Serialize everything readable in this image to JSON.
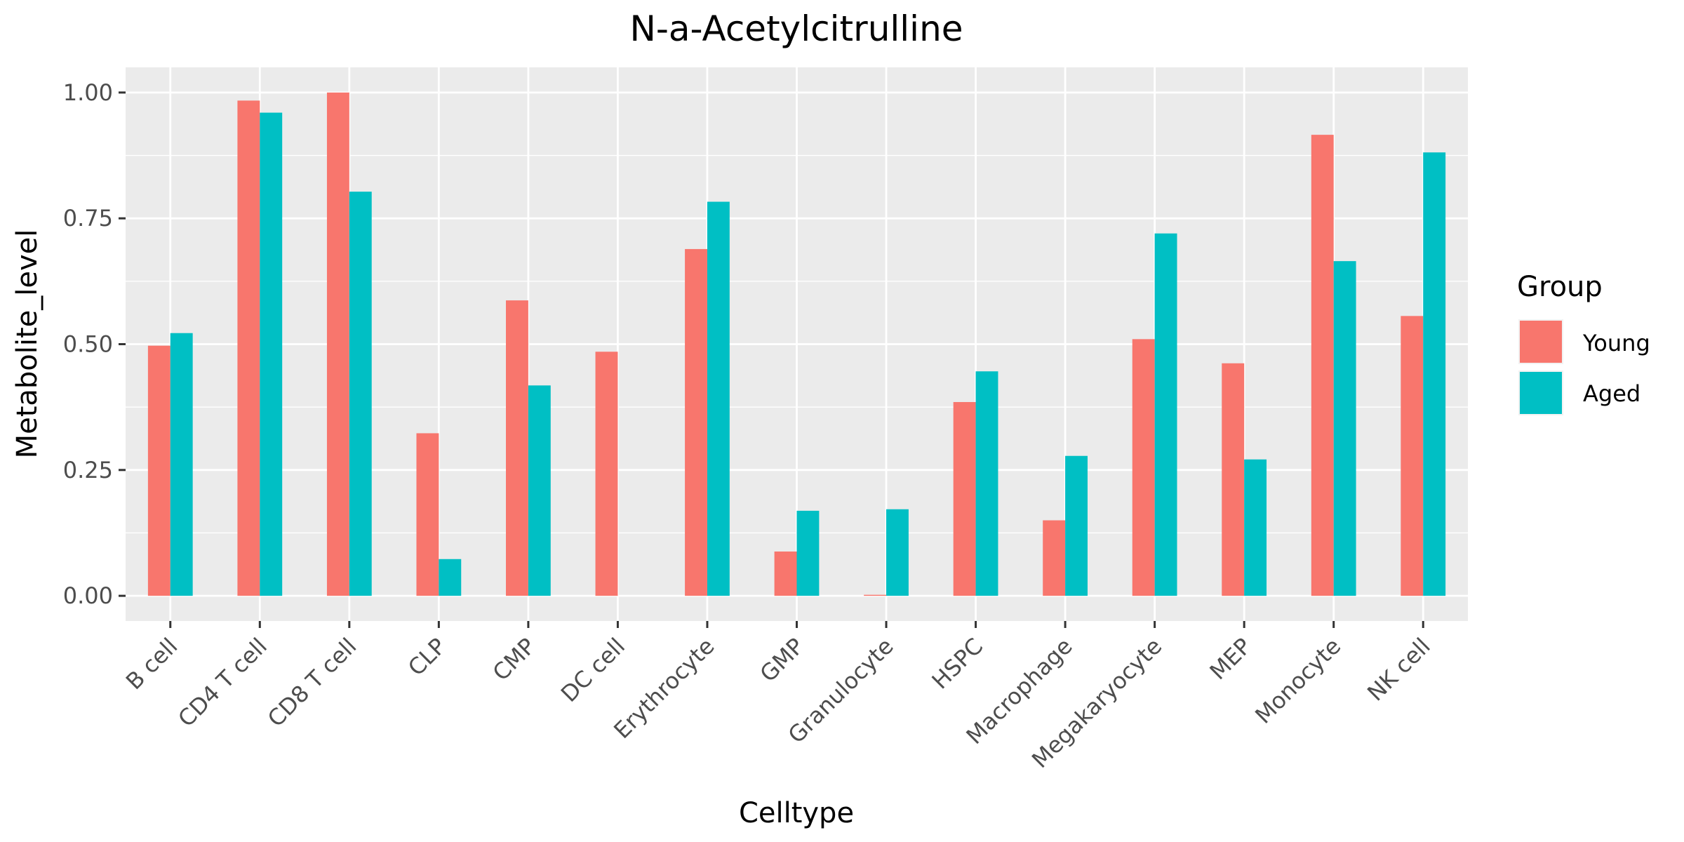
{
  "chart_data": {
    "type": "bar",
    "title": "N-a-Acetylcitrulline",
    "xlabel": "Celltype",
    "ylabel": "Metabolite_level",
    "ylim": [
      -0.05,
      1.05
    ],
    "yticks": [
      0.0,
      0.25,
      0.5,
      0.75,
      1.0
    ],
    "ytick_labels": [
      "0.00",
      "0.25",
      "0.50",
      "0.75",
      "1.00"
    ],
    "grid": true,
    "legend": {
      "title": "Group",
      "position": "right"
    },
    "categories": [
      "B cell",
      "CD4 T cell",
      "CD8 T cell",
      "CLP",
      "CMP",
      "DC cell",
      "Erythrocyte",
      "GMP",
      "Granulocyte",
      "HSPC",
      "Macrophage",
      "Megakaryocyte",
      "MEP",
      "Monocyte",
      "NK cell"
    ],
    "series": [
      {
        "name": "Young",
        "color": "#F8766D",
        "values": [
          0.497,
          0.984,
          1.0,
          0.323,
          0.587,
          0.485,
          0.689,
          0.088,
          0.002,
          0.385,
          0.15,
          0.51,
          0.462,
          0.916,
          0.556
        ]
      },
      {
        "name": "Aged",
        "color": "#00BFC4",
        "values": [
          0.522,
          0.96,
          0.803,
          0.073,
          0.418,
          0.0,
          0.783,
          0.169,
          0.172,
          0.446,
          0.278,
          0.72,
          0.271,
          0.665,
          0.881
        ]
      }
    ],
    "colors": {
      "panel_background": "#EBEBEB",
      "grid": "#FFFFFF",
      "axis_text": "#4D4D4D",
      "tick": "#333333"
    }
  }
}
